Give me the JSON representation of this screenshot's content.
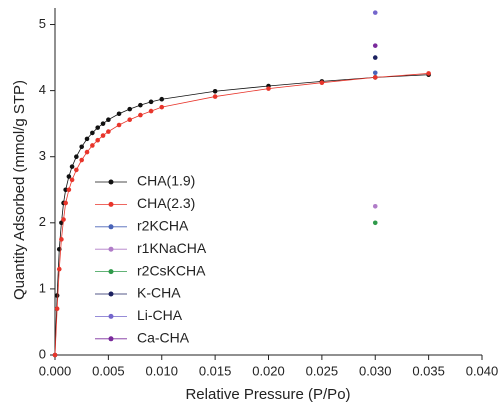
{
  "chart_data": {
    "type": "scatter",
    "xlabel": "Relative Pressure (P/Po)",
    "ylabel": "Quantity Adsorbed (mmol/g STP)",
    "xlim": [
      0,
      0.04
    ],
    "ylim": [
      0,
      5.25
    ],
    "xticks": [
      {
        "value": 0,
        "label": "0.000"
      },
      {
        "value": 0.005,
        "label": "0.005"
      },
      {
        "value": 0.01,
        "label": "0.010"
      },
      {
        "value": 0.015,
        "label": "0.015"
      },
      {
        "value": 0.02,
        "label": "0.020"
      },
      {
        "value": 0.025,
        "label": "0.025"
      },
      {
        "value": 0.03,
        "label": "0.030"
      },
      {
        "value": 0.035,
        "label": "0.035"
      },
      {
        "value": 0.04,
        "label": "0.040"
      }
    ],
    "yticks": [
      0,
      1,
      2,
      3,
      4,
      5
    ],
    "legend": "lower-left",
    "series": [
      {
        "name": "CHA(1.9)",
        "color": "#111111",
        "line": true,
        "x": [
          0,
          0.0002,
          0.0004,
          0.0006,
          0.0008,
          0.001,
          0.0013,
          0.0016,
          0.002,
          0.0025,
          0.003,
          0.0035,
          0.004,
          0.0045,
          0.005,
          0.006,
          0.007,
          0.008,
          0.009,
          0.01,
          0.015,
          0.02,
          0.025,
          0.03,
          0.035
        ],
        "values": [
          0,
          0.9,
          1.6,
          2.0,
          2.3,
          2.5,
          2.7,
          2.85,
          3.0,
          3.15,
          3.27,
          3.36,
          3.44,
          3.5,
          3.56,
          3.65,
          3.72,
          3.78,
          3.83,
          3.87,
          3.99,
          4.07,
          4.14,
          4.2,
          4.24
        ]
      },
      {
        "name": "CHA(2.3)",
        "color": "#e8352b",
        "line": true,
        "x": [
          0,
          0.0002,
          0.0004,
          0.0006,
          0.0008,
          0.001,
          0.0013,
          0.0016,
          0.002,
          0.0025,
          0.003,
          0.0035,
          0.004,
          0.0045,
          0.005,
          0.006,
          0.007,
          0.008,
          0.009,
          0.01,
          0.015,
          0.02,
          0.025,
          0.03,
          0.035
        ],
        "values": [
          0,
          0.7,
          1.3,
          1.75,
          2.05,
          2.3,
          2.5,
          2.65,
          2.8,
          2.95,
          3.07,
          3.17,
          3.25,
          3.32,
          3.38,
          3.48,
          3.56,
          3.63,
          3.69,
          3.75,
          3.91,
          4.03,
          4.12,
          4.2,
          4.26
        ]
      },
      {
        "name": "r2KCHA",
        "color": "#4a64b8",
        "line": false,
        "x": [
          0.03
        ],
        "values": [
          4.27
        ]
      },
      {
        "name": "r1KNaCHA",
        "color": "#b07cc8",
        "line": false,
        "x": [
          0.03
        ],
        "values": [
          2.25
        ]
      },
      {
        "name": "r2CsKCHA",
        "color": "#2f9a4a",
        "line": false,
        "x": [
          0.03
        ],
        "values": [
          2.0
        ]
      },
      {
        "name": "K-CHA",
        "color": "#1c2160",
        "line": false,
        "x": [
          0.03
        ],
        "values": [
          4.5
        ]
      },
      {
        "name": "Li-CHA",
        "color": "#7466cc",
        "line": false,
        "x": [
          0.03
        ],
        "values": [
          5.18
        ]
      },
      {
        "name": "Ca-CHA",
        "color": "#7a2a9c",
        "line": false,
        "x": [
          0.03
        ],
        "values": [
          4.68
        ]
      }
    ]
  }
}
